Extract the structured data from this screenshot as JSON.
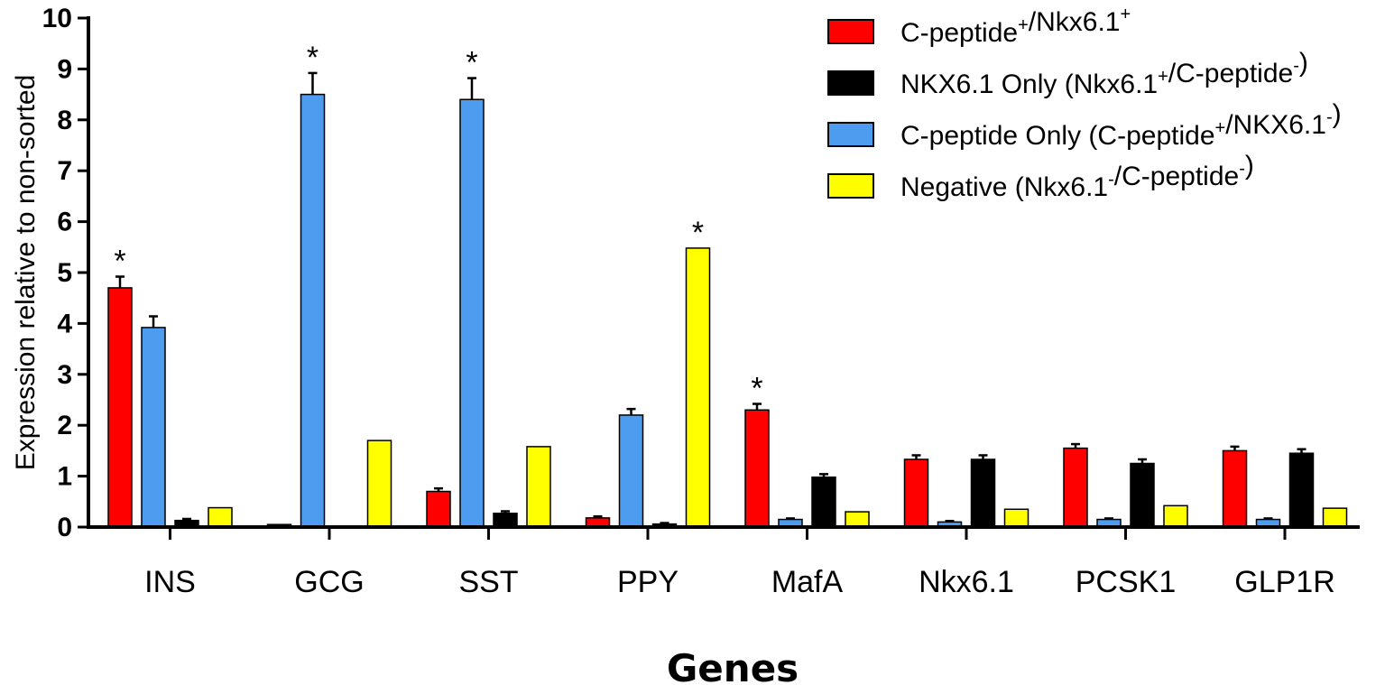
{
  "chart_data": {
    "type": "bar",
    "xlabel": "Genes",
    "ylabel": "Expression relative to non-sorted",
    "ylim": [
      0,
      10
    ],
    "yticks": [
      0,
      1,
      2,
      3,
      4,
      5,
      6,
      7,
      8,
      9,
      10
    ],
    "legend_position": "top-right",
    "significance_marker": "*",
    "categories": [
      "INS",
      "GCG",
      "SST",
      "PPY",
      "MafA",
      "Nkx6.1",
      "PCSK1",
      "GLP1R"
    ],
    "series": [
      {
        "name": "C-peptide⁺/Nkx6.1⁺",
        "color": "#ff0000",
        "values": [
          4.7,
          0.05,
          0.7,
          0.18,
          2.3,
          1.33,
          1.55,
          1.5
        ],
        "errors": [
          0.22,
          0.0,
          0.06,
          0.03,
          0.12,
          0.08,
          0.08,
          0.08
        ],
        "significant": [
          true,
          false,
          false,
          false,
          true,
          false,
          false,
          false
        ]
      },
      {
        "name": "C-peptide Only (C-peptide⁺/NKX6.1⁻)",
        "color": "#4d9cf0",
        "values": [
          3.92,
          8.5,
          8.4,
          2.2,
          0.15,
          0.1,
          0.15,
          0.15
        ],
        "errors": [
          0.22,
          0.42,
          0.42,
          0.12,
          0.02,
          0.02,
          0.02,
          0.02
        ],
        "significant": [
          false,
          true,
          true,
          false,
          false,
          false,
          false,
          false
        ]
      },
      {
        "name": "NKX6.1 Only (Nkx6.1⁺/C-peptide⁻)",
        "color": "#000000",
        "values": [
          0.13,
          0.0,
          0.27,
          0.06,
          0.98,
          1.33,
          1.25,
          1.45
        ],
        "errors": [
          0.03,
          0.0,
          0.04,
          0.02,
          0.06,
          0.08,
          0.08,
          0.08
        ],
        "significant": [
          false,
          false,
          false,
          false,
          false,
          false,
          false,
          false
        ]
      },
      {
        "name": "Negative (Nkx6.1⁻/C-peptide⁻)",
        "color": "#ffff00",
        "values": [
          0.38,
          1.7,
          1.58,
          5.48,
          0.3,
          0.35,
          0.42,
          0.37
        ],
        "errors": [
          0.0,
          0.0,
          0.0,
          0.0,
          0.0,
          0.0,
          0.0,
          0.0
        ],
        "significant": [
          false,
          false,
          false,
          true,
          false,
          false,
          false,
          false
        ]
      }
    ],
    "legend": [
      {
        "label_parts": [
          [
            "C-peptide",
            ""
          ],
          [
            "+",
            "sup"
          ],
          [
            "/Nkx6.1",
            ""
          ],
          [
            "+",
            "sup"
          ]
        ],
        "color": "#ff0000"
      },
      {
        "label_parts": [
          [
            "NKX6.1 Only (Nkx6.1",
            ""
          ],
          [
            "+",
            "sup"
          ],
          [
            "/C-peptide",
            ""
          ],
          [
            "-",
            "sup"
          ],
          [
            ")",
            ""
          ]
        ],
        "color": "#000000"
      },
      {
        "label_parts": [
          [
            "C-peptide Only (C-peptide",
            ""
          ],
          [
            "+",
            "sup"
          ],
          [
            "/NKX6.1",
            ""
          ],
          [
            "-",
            "sup"
          ],
          [
            ")",
            ""
          ]
        ],
        "color": "#4d9cf0"
      },
      {
        "label_parts": [
          [
            "Negative (Nkx6.1",
            ""
          ],
          [
            "-",
            "sup"
          ],
          [
            "/C-peptide",
            ""
          ],
          [
            "-",
            "sup"
          ],
          [
            ")",
            ""
          ]
        ],
        "color": "#ffff00"
      }
    ]
  }
}
